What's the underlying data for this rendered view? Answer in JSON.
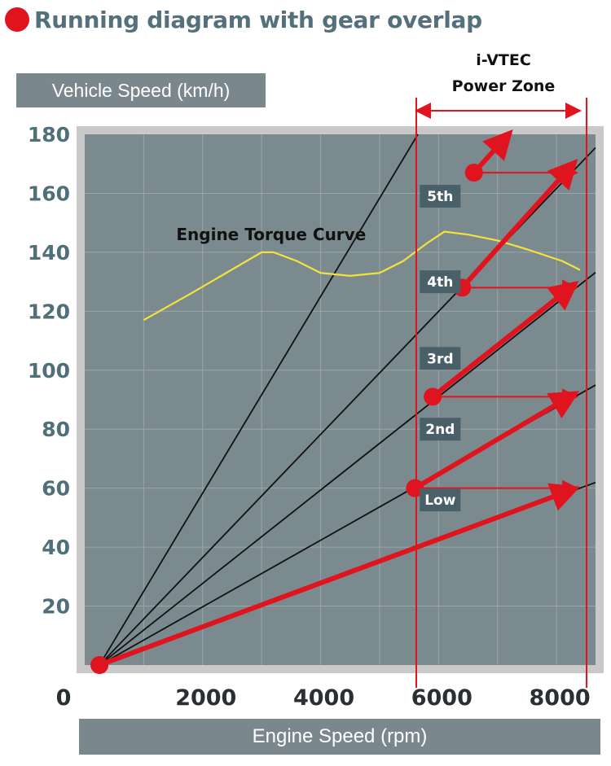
{
  "chart_data": {
    "type": "line",
    "title": "Running diagram with gear overlap",
    "ylabel": "Vehicle Speed (km/h)",
    "xlabel": "Engine Speed (rpm)",
    "xlim": [
      0,
      8800
    ],
    "ylim": [
      0,
      180
    ],
    "x_ticks": [
      "0",
      "2000",
      "4000",
      "6000",
      "8000"
    ],
    "y_ticks": [
      "20",
      "40",
      "60",
      "80",
      "100",
      "120",
      "140",
      "160",
      "180"
    ],
    "grid": true,
    "origin": [
      250,
      0
    ],
    "gears": [
      {
        "name": "Low",
        "end_rpm": 8400,
        "end_speed": 60,
        "label_rpm": 6000,
        "label_speed": 56
      },
      {
        "name": "2nd",
        "end_rpm": 8400,
        "end_speed": 92,
        "label_rpm": 6000,
        "label_speed": 80
      },
      {
        "name": "3rd",
        "end_rpm": 8400,
        "end_speed": 129,
        "label_rpm": 6000,
        "label_speed": 104
      },
      {
        "name": "4th",
        "end_rpm": 8400,
        "end_speed": 170,
        "label_rpm": 6000,
        "label_speed": 130
      },
      {
        "name": "5th",
        "end_rpm": 5650,
        "end_speed": 180,
        "label_rpm": 6000,
        "label_speed": 159
      }
    ],
    "torque_curve": {
      "name": "Engine Torque Curve",
      "label_rpm": 1000,
      "label_speed": 146,
      "points": [
        [
          1000,
          117
        ],
        [
          1800,
          126
        ],
        [
          2400,
          133
        ],
        [
          3000,
          140
        ],
        [
          3200,
          140
        ],
        [
          3600,
          137
        ],
        [
          4000,
          133
        ],
        [
          4500,
          132
        ],
        [
          5000,
          133
        ],
        [
          5400,
          137
        ],
        [
          5800,
          143
        ],
        [
          6100,
          147
        ],
        [
          6500,
          146
        ],
        [
          7000,
          144
        ],
        [
          7500,
          141
        ],
        [
          8100,
          137
        ],
        [
          8400,
          134
        ]
      ]
    },
    "power_zone": {
      "label_line1": "i-VTEC",
      "label_line2": "Power Zone",
      "start_rpm": 5650,
      "end_rpm": 8400
    },
    "shift_path": [
      {
        "from": [
          250,
          0
        ],
        "to": [
          8400,
          60
        ]
      },
      {
        "from": [
          5600,
          60
        ],
        "to": [
          8400,
          92
        ]
      },
      {
        "from": [
          5900,
          91
        ],
        "to": [
          8400,
          129
        ]
      },
      {
        "from": [
          6400,
          128
        ],
        "to": [
          8400,
          170
        ]
      },
      {
        "from": [
          6600,
          167
        ],
        "to": [
          7300,
          180
        ]
      }
    ],
    "shift_drops": [
      {
        "from": [
          5650,
          60
        ],
        "to": [
          8400,
          60
        ]
      },
      {
        "from": [
          5900,
          91
        ],
        "to": [
          8400,
          91
        ]
      },
      {
        "from": [
          6400,
          128
        ],
        "to": [
          8400,
          128
        ]
      },
      {
        "from": [
          6600,
          167
        ],
        "to": [
          8400,
          167
        ]
      }
    ],
    "shift_points": [
      [
        5600,
        60
      ],
      [
        5900,
        91
      ],
      [
        6400,
        128
      ],
      [
        6600,
        167
      ],
      [
        250,
        0
      ]
    ],
    "colors": {
      "plot_bg": "#7b8a8e",
      "gear_line": "#111111",
      "torque": "#f2e23a",
      "shift": "#e0141e",
      "zone": "#e0141e"
    }
  }
}
